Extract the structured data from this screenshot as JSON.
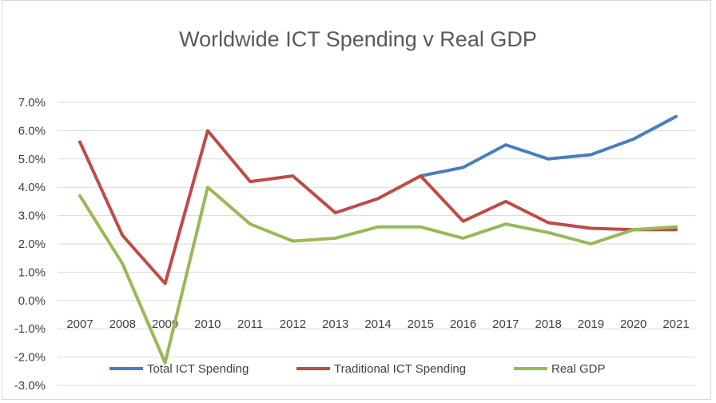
{
  "chart_data": {
    "type": "line",
    "title": "Worldwide ICT Spending v Real GDP",
    "xlabel": "",
    "ylabel": "",
    "categories": [
      "2007",
      "2008",
      "2009",
      "2010",
      "2011",
      "2012",
      "2013",
      "2014",
      "2015",
      "2016",
      "2017",
      "2018",
      "2019",
      "2020",
      "2021"
    ],
    "y_ticks": [
      "7.0%",
      "6.0%",
      "5.0%",
      "4.0%",
      "3.0%",
      "2.0%",
      "1.0%",
      "0.0%",
      "-1.0%",
      "-2.0%",
      "-3.0%"
    ],
    "ylim": [
      -3,
      7
    ],
    "grid": true,
    "legend_position": "bottom",
    "series": [
      {
        "name": "Total ICT Spending",
        "color": "#4a7ebb",
        "values": [
          null,
          null,
          null,
          null,
          null,
          null,
          null,
          null,
          4.4,
          4.7,
          5.5,
          5.0,
          5.15,
          5.7,
          6.5
        ]
      },
      {
        "name": "Traditional ICT Spending",
        "color": "#be4b48",
        "values": [
          5.6,
          2.3,
          0.6,
          6.0,
          4.2,
          4.4,
          3.1,
          3.6,
          4.4,
          2.8,
          3.5,
          2.75,
          2.55,
          2.5,
          2.5
        ]
      },
      {
        "name": "Real GDP",
        "color": "#98b954",
        "values": [
          3.7,
          1.3,
          -2.2,
          4.0,
          2.7,
          2.1,
          2.2,
          2.6,
          2.6,
          2.2,
          2.7,
          2.4,
          2.0,
          2.5,
          2.6
        ]
      }
    ]
  }
}
